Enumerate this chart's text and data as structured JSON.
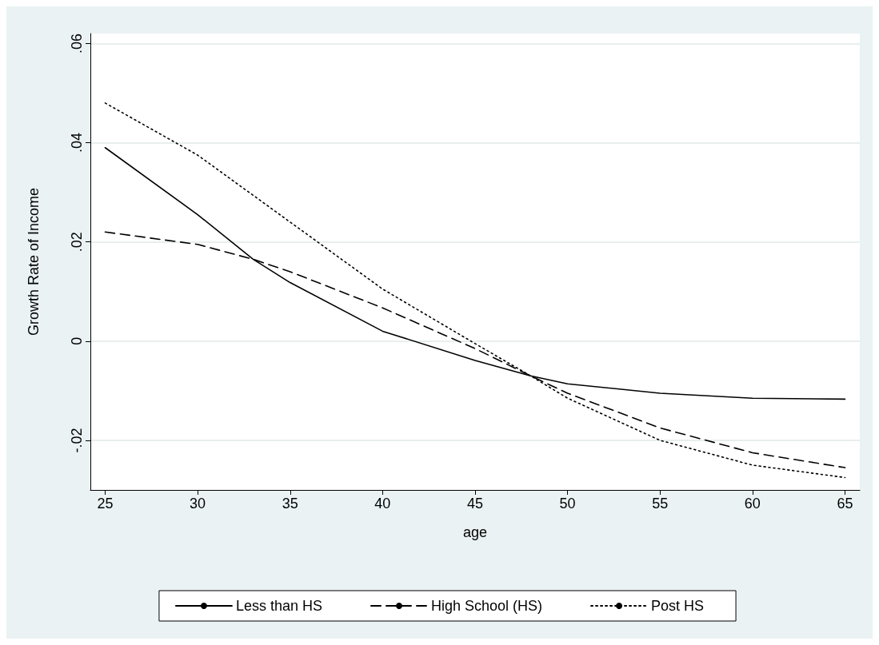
{
  "chart_data": {
    "type": "line",
    "xlabel": "age",
    "ylabel": "Growth Rate of Income",
    "xlim": [
      24.2,
      65.8
    ],
    "xticks": [
      25,
      30,
      35,
      40,
      45,
      50,
      55,
      60,
      65
    ],
    "ylim": [
      -0.03,
      0.062
    ],
    "yticks": [
      {
        "value": -0.02,
        "label": "-.02"
      },
      {
        "value": 0,
        "label": "0"
      },
      {
        "value": 0.02,
        "label": ".02"
      },
      {
        "value": 0.04,
        "label": ".04"
      },
      {
        "value": 0.06,
        "label": ".06"
      }
    ],
    "grid": "y",
    "legend": "bottom",
    "marker": "none",
    "series": [
      {
        "name": "Less than HS",
        "color": "#000000",
        "line_style": "solid",
        "x": [
          25,
          30,
          33,
          35,
          40,
          45,
          48,
          50,
          55,
          60,
          65
        ],
        "values": [
          0.039,
          0.0255,
          0.0165,
          0.0118,
          0.002,
          -0.0039,
          -0.007,
          -0.0086,
          -0.0105,
          -0.0115,
          -0.0117
        ]
      },
      {
        "name": "High School (HS)",
        "color": "#000000",
        "line_style": "dashed",
        "x": [
          25,
          30,
          33,
          35,
          40,
          45,
          48,
          50,
          55,
          60,
          65
        ],
        "values": [
          0.022,
          0.0195,
          0.0165,
          0.014,
          0.0067,
          -0.0015,
          -0.007,
          -0.0105,
          -0.0175,
          -0.0225,
          -0.0255
        ]
      },
      {
        "name": "Post HS",
        "color": "#000000",
        "line_style": "dotted",
        "x": [
          25,
          30,
          35,
          40,
          45,
          48,
          50,
          55,
          60,
          65
        ],
        "values": [
          0.048,
          0.0375,
          0.024,
          0.0105,
          -0.0005,
          -0.007,
          -0.0115,
          -0.02,
          -0.025,
          -0.0275
        ]
      }
    ]
  }
}
